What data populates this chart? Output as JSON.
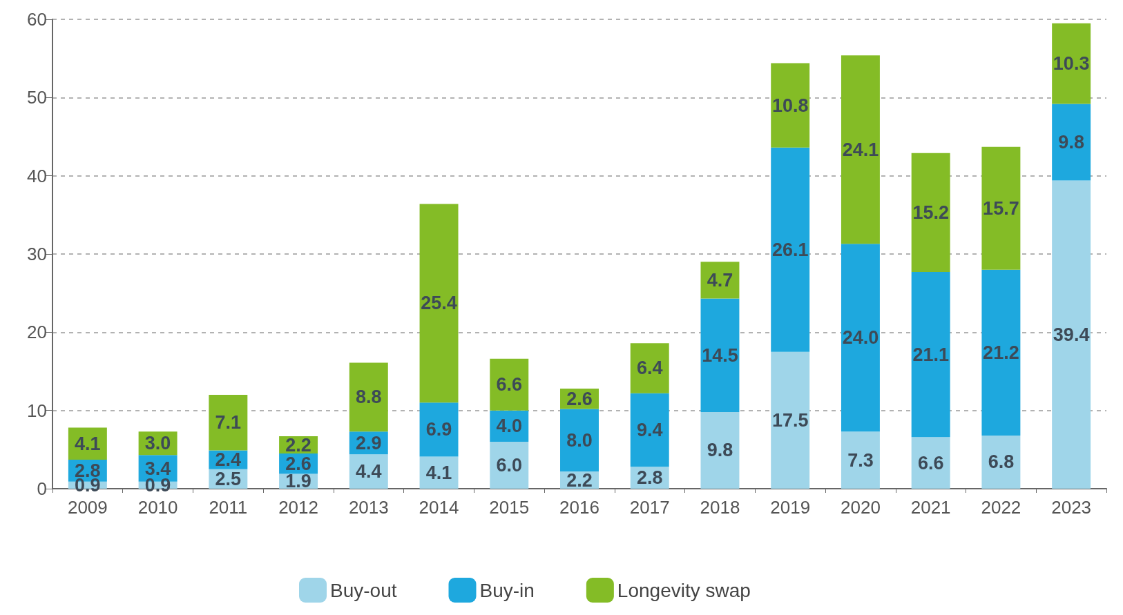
{
  "chart_data": {
    "type": "bar",
    "stacked": true,
    "categories": [
      "2009",
      "2010",
      "2011",
      "2012",
      "2013",
      "2014",
      "2015",
      "2016",
      "2017",
      "2018",
      "2019",
      "2020",
      "2021",
      "2022",
      "2023"
    ],
    "series": [
      {
        "name": "Buy-out",
        "color": "#9fd5e9",
        "values": [
          0.9,
          0.9,
          2.5,
          1.9,
          4.4,
          4.1,
          6.0,
          2.2,
          2.8,
          9.8,
          17.5,
          7.3,
          6.6,
          6.8,
          39.4
        ],
        "value_labels": [
          "0.9",
          "0.9",
          "2.5",
          "1.9",
          "4.4",
          "4.1",
          "6.0",
          "2.2",
          "2.8",
          "9.8",
          "17.5",
          "7.3",
          "6.6",
          "6.8",
          "39.4"
        ]
      },
      {
        "name": "Buy-in",
        "color": "#1ea8de",
        "values": [
          2.8,
          3.4,
          2.4,
          2.6,
          2.9,
          6.9,
          4.0,
          8.0,
          9.4,
          14.5,
          26.1,
          24.0,
          21.1,
          21.2,
          9.8
        ],
        "value_labels": [
          "2.8",
          "3.4",
          "2.4",
          "2.6",
          "2.9",
          "6.9",
          "4.0",
          "8.0",
          "9.4",
          "14.5",
          "26.1",
          "24.0",
          "21.1",
          "21.2",
          "9.8"
        ]
      },
      {
        "name": "Longevity swap",
        "color": "#84bc26",
        "values": [
          4.1,
          3.0,
          7.1,
          2.2,
          8.8,
          25.4,
          6.6,
          2.6,
          6.4,
          4.7,
          10.8,
          24.1,
          15.2,
          15.7,
          10.3
        ],
        "value_labels": [
          "4.1",
          "3.0",
          "7.1",
          "2.2",
          "8.8",
          "25.4",
          "6.6",
          "2.6",
          "6.4",
          "4.7",
          "10.8",
          "24.1",
          "15.2",
          "15.7",
          "10.3"
        ]
      }
    ],
    "ylim": [
      0,
      60
    ],
    "yticks": [
      0,
      10,
      20,
      30,
      40,
      50,
      60
    ],
    "grid": "y",
    "legend": "bottom"
  }
}
